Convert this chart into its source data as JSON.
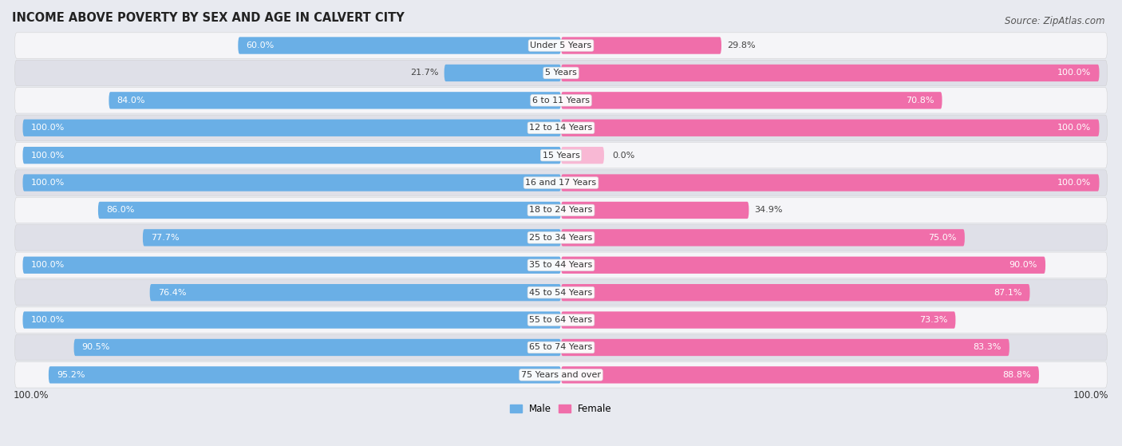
{
  "title": "INCOME ABOVE POVERTY BY SEX AND AGE IN CALVERT CITY",
  "source": "Source: ZipAtlas.com",
  "categories": [
    "Under 5 Years",
    "5 Years",
    "6 to 11 Years",
    "12 to 14 Years",
    "15 Years",
    "16 and 17 Years",
    "18 to 24 Years",
    "25 to 34 Years",
    "35 to 44 Years",
    "45 to 54 Years",
    "55 to 64 Years",
    "65 to 74 Years",
    "75 Years and over"
  ],
  "male_values": [
    60.0,
    21.7,
    84.0,
    100.0,
    100.0,
    100.0,
    86.0,
    77.7,
    100.0,
    76.4,
    100.0,
    90.5,
    95.2
  ],
  "female_values": [
    29.8,
    100.0,
    70.8,
    100.0,
    0.0,
    100.0,
    34.9,
    75.0,
    90.0,
    87.1,
    73.3,
    83.3,
    88.8
  ],
  "male_color": "#6aafe6",
  "female_color": "#f06eaa",
  "male_light_color": "#b8d4f0",
  "female_light_color": "#f8b8d4",
  "male_label": "Male",
  "female_label": "Female",
  "axis_max": 100.0,
  "bar_height": 0.62,
  "background_color": "#e8eaf0",
  "row_bg_odd": "#f5f5f8",
  "row_bg_even": "#dfe0e8",
  "title_fontsize": 10.5,
  "source_fontsize": 8.5,
  "label_fontsize": 8,
  "category_fontsize": 8,
  "tick_fontsize": 8.5
}
